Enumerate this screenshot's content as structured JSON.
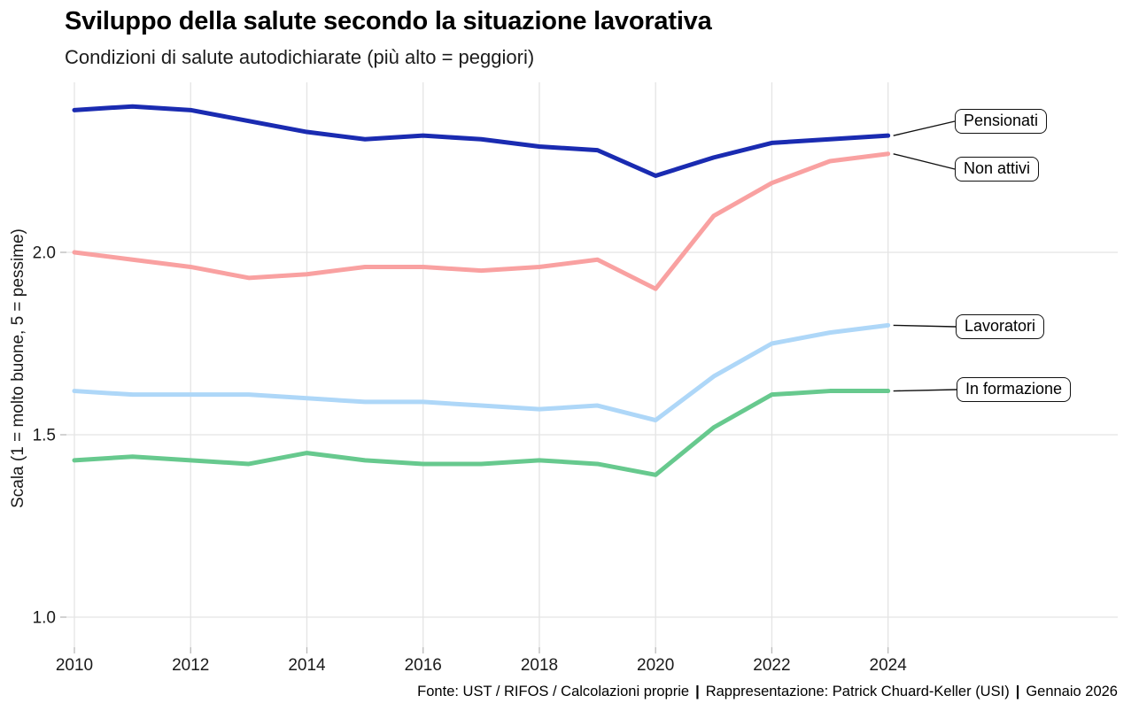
{
  "header": {
    "title": "Sviluppo della salute secondo la situazione lavorativa",
    "subtitle": "Condizioni di salute autodichiarate (più alto = peggiori)"
  },
  "chart_data": {
    "type": "line",
    "title": "Sviluppo della salute secondo la situazione lavorativa",
    "subtitle": "Condizioni di salute autodichiarate (più alto = peggiori)",
    "xlabel": "",
    "ylabel": "Scala (1 = molto buone, 5 = pessime)",
    "x": [
      2010,
      2011,
      2012,
      2013,
      2014,
      2015,
      2016,
      2017,
      2018,
      2019,
      2020,
      2021,
      2022,
      2023,
      2024
    ],
    "x_ticks": [
      2010,
      2012,
      2014,
      2016,
      2018,
      2020,
      2022,
      2024
    ],
    "y_ticks": [
      "1.0",
      "1.5",
      "2.0"
    ],
    "ylim": [
      0.92,
      2.47
    ],
    "grid": true,
    "legend_position": "right-edge-labels",
    "series": [
      {
        "name": "Pensionati",
        "color": "#1a2bb1",
        "values": [
          2.39,
          2.4,
          2.39,
          2.36,
          2.33,
          2.31,
          2.32,
          2.31,
          2.29,
          2.28,
          2.21,
          2.26,
          2.3,
          2.31,
          2.32
        ]
      },
      {
        "name": "Non attivi",
        "color": "#f9a1a1",
        "values": [
          2.0,
          1.98,
          1.96,
          1.93,
          1.94,
          1.96,
          1.96,
          1.95,
          1.96,
          1.98,
          1.9,
          2.1,
          2.19,
          2.25,
          2.27
        ]
      },
      {
        "name": "Lavoratori",
        "color": "#aed7f8",
        "values": [
          1.62,
          1.61,
          1.61,
          1.61,
          1.6,
          1.59,
          1.59,
          1.58,
          1.57,
          1.58,
          1.54,
          1.66,
          1.75,
          1.78,
          1.8
        ]
      },
      {
        "name": "In formazione",
        "color": "#67c98e",
        "values": [
          1.43,
          1.44,
          1.43,
          1.42,
          1.45,
          1.43,
          1.42,
          1.42,
          1.43,
          1.42,
          1.39,
          1.52,
          1.61,
          1.62,
          1.62
        ]
      }
    ]
  },
  "footer": {
    "parts": [
      "Fonte: UST / RIFOS / Calcolazioni proprie",
      "Rappresentazione: Patrick Chuard-Keller (USI)",
      "Gennaio 2026"
    ],
    "separator": "|"
  },
  "colors": {
    "grid": "#e4e4e4",
    "tick_mark": "#b9b9b9",
    "tick_text": "#1a1a1a",
    "connector": "#111111",
    "background": "#ffffff"
  }
}
